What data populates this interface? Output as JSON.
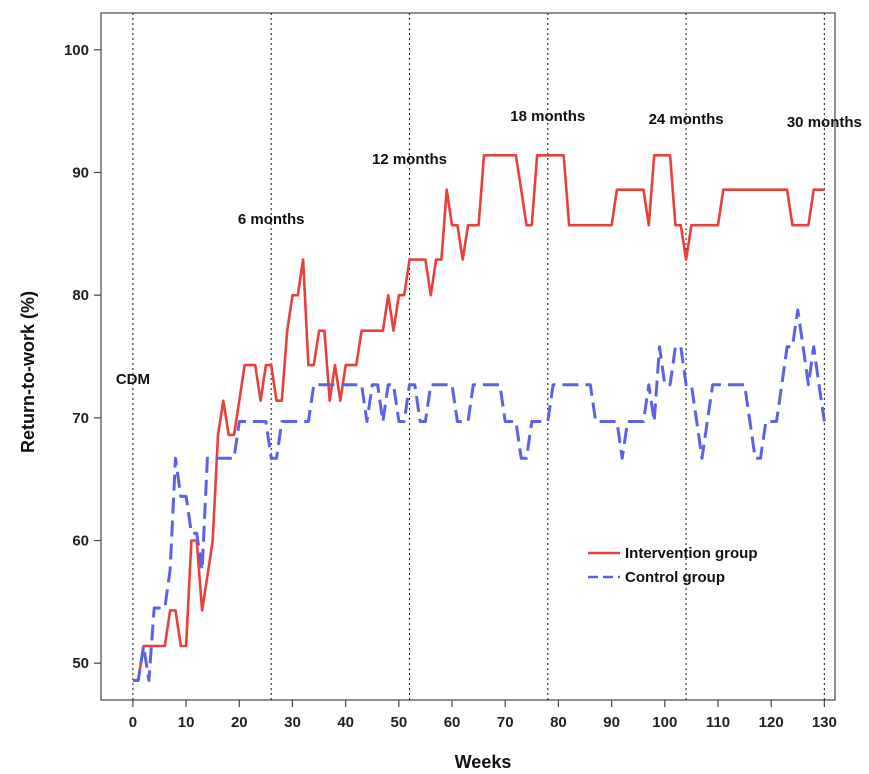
{
  "chart_data": {
    "type": "line",
    "title": "",
    "xlabel": "Weeks",
    "ylabel": "Return-to-work (%)",
    "xlim": [
      -6,
      132
    ],
    "ylim": [
      47,
      103
    ],
    "xticks": [
      0,
      10,
      20,
      30,
      40,
      50,
      60,
      70,
      80,
      90,
      100,
      110,
      120,
      130
    ],
    "yticks": [
      50,
      60,
      70,
      80,
      90,
      100
    ],
    "grid": false,
    "legend_position": "lower-right",
    "reference_lines": [
      {
        "x": 0,
        "label": "CDM"
      },
      {
        "x": 26,
        "label": "6 months"
      },
      {
        "x": 52,
        "label": "12 months"
      },
      {
        "x": 78,
        "label": "18 months"
      },
      {
        "x": 104,
        "label": "24 months"
      },
      {
        "x": 130,
        "label": "30 months"
      }
    ],
    "series": [
      {
        "name": "Intervention group",
        "color": "#e8403a",
        "style": "solid",
        "points": [
          [
            0,
            48.6
          ],
          [
            1,
            48.6
          ],
          [
            2,
            51.4
          ],
          [
            3,
            51.4
          ],
          [
            4,
            51.4
          ],
          [
            5,
            51.4
          ],
          [
            6,
            51.4
          ],
          [
            7,
            54.3
          ],
          [
            8,
            54.3
          ],
          [
            9,
            51.4
          ],
          [
            10,
            51.4
          ],
          [
            11,
            60.0
          ],
          [
            12,
            60.0
          ],
          [
            13,
            54.3
          ],
          [
            14,
            57.1
          ],
          [
            15,
            60.0
          ],
          [
            16,
            68.6
          ],
          [
            17,
            71.4
          ],
          [
            18,
            68.6
          ],
          [
            19,
            68.6
          ],
          [
            20,
            71.4
          ],
          [
            21,
            74.3
          ],
          [
            22,
            74.3
          ],
          [
            23,
            74.3
          ],
          [
            24,
            71.4
          ],
          [
            25,
            74.3
          ],
          [
            26,
            74.3
          ],
          [
            27,
            71.4
          ],
          [
            28,
            71.4
          ],
          [
            29,
            77.1
          ],
          [
            30,
            80.0
          ],
          [
            31,
            80.0
          ],
          [
            32,
            82.9
          ],
          [
            33,
            74.3
          ],
          [
            34,
            74.3
          ],
          [
            35,
            77.1
          ],
          [
            36,
            77.1
          ],
          [
            37,
            71.4
          ],
          [
            38,
            74.3
          ],
          [
            39,
            71.4
          ],
          [
            40,
            74.3
          ],
          [
            41,
            74.3
          ],
          [
            42,
            74.3
          ],
          [
            43,
            77.1
          ],
          [
            44,
            77.1
          ],
          [
            45,
            77.1
          ],
          [
            46,
            77.1
          ],
          [
            47,
            77.1
          ],
          [
            48,
            80.0
          ],
          [
            49,
            77.1
          ],
          [
            50,
            80.0
          ],
          [
            51,
            80.0
          ],
          [
            52,
            82.9
          ],
          [
            53,
            82.9
          ],
          [
            54,
            82.9
          ],
          [
            55,
            82.9
          ],
          [
            56,
            80.0
          ],
          [
            57,
            82.9
          ],
          [
            58,
            82.9
          ],
          [
            59,
            88.6
          ],
          [
            60,
            85.7
          ],
          [
            61,
            85.7
          ],
          [
            62,
            82.9
          ],
          [
            63,
            85.7
          ],
          [
            64,
            85.7
          ],
          [
            65,
            85.7
          ],
          [
            66,
            91.4
          ],
          [
            67,
            91.4
          ],
          [
            68,
            91.4
          ],
          [
            69,
            91.4
          ],
          [
            70,
            91.4
          ],
          [
            71,
            91.4
          ],
          [
            72,
            91.4
          ],
          [
            73,
            88.6
          ],
          [
            74,
            85.7
          ],
          [
            75,
            85.7
          ],
          [
            76,
            91.4
          ],
          [
            77,
            91.4
          ],
          [
            78,
            91.4
          ],
          [
            79,
            91.4
          ],
          [
            80,
            91.4
          ],
          [
            81,
            91.4
          ],
          [
            82,
            85.7
          ],
          [
            83,
            85.7
          ],
          [
            84,
            85.7
          ],
          [
            85,
            85.7
          ],
          [
            86,
            85.7
          ],
          [
            87,
            85.7
          ],
          [
            88,
            85.7
          ],
          [
            89,
            85.7
          ],
          [
            90,
            85.7
          ],
          [
            91,
            88.6
          ],
          [
            92,
            88.6
          ],
          [
            93,
            88.6
          ],
          [
            94,
            88.6
          ],
          [
            95,
            88.6
          ],
          [
            96,
            88.6
          ],
          [
            97,
            85.7
          ],
          [
            98,
            91.4
          ],
          [
            99,
            91.4
          ],
          [
            100,
            91.4
          ],
          [
            101,
            91.4
          ],
          [
            102,
            85.7
          ],
          [
            103,
            85.7
          ],
          [
            104,
            82.9
          ],
          [
            105,
            85.7
          ],
          [
            106,
            85.7
          ],
          [
            107,
            85.7
          ],
          [
            108,
            85.7
          ],
          [
            109,
            85.7
          ],
          [
            110,
            85.7
          ],
          [
            111,
            88.6
          ],
          [
            112,
            88.6
          ],
          [
            113,
            88.6
          ],
          [
            114,
            88.6
          ],
          [
            115,
            88.6
          ],
          [
            116,
            88.6
          ],
          [
            117,
            88.6
          ],
          [
            118,
            88.6
          ],
          [
            119,
            88.6
          ],
          [
            120,
            88.6
          ],
          [
            121,
            88.6
          ],
          [
            122,
            88.6
          ],
          [
            123,
            88.6
          ],
          [
            124,
            85.7
          ],
          [
            125,
            85.7
          ],
          [
            126,
            85.7
          ],
          [
            127,
            85.7
          ],
          [
            128,
            88.6
          ],
          [
            129,
            88.6
          ],
          [
            130,
            88.6
          ]
        ]
      },
      {
        "name": "Control group",
        "color": "#5a62e8",
        "style": "dashed",
        "points": [
          [
            0,
            48.6
          ],
          [
            1,
            48.6
          ],
          [
            2,
            51.4
          ],
          [
            3,
            48.6
          ],
          [
            4,
            54.5
          ],
          [
            5,
            54.5
          ],
          [
            6,
            54.5
          ],
          [
            7,
            57.6
          ],
          [
            8,
            66.7
          ],
          [
            9,
            63.6
          ],
          [
            10,
            63.6
          ],
          [
            11,
            60.6
          ],
          [
            12,
            60.6
          ],
          [
            13,
            57.6
          ],
          [
            14,
            66.7
          ],
          [
            15,
            66.7
          ],
          [
            16,
            66.7
          ],
          [
            17,
            66.7
          ],
          [
            18,
            66.7
          ],
          [
            19,
            66.7
          ],
          [
            20,
            69.7
          ],
          [
            21,
            69.7
          ],
          [
            22,
            69.7
          ],
          [
            23,
            69.7
          ],
          [
            24,
            69.7
          ],
          [
            25,
            69.7
          ],
          [
            26,
            66.7
          ],
          [
            27,
            66.7
          ],
          [
            28,
            69.7
          ],
          [
            29,
            69.7
          ],
          [
            30,
            69.7
          ],
          [
            31,
            69.7
          ],
          [
            32,
            69.7
          ],
          [
            33,
            69.7
          ],
          [
            34,
            72.7
          ],
          [
            35,
            72.7
          ],
          [
            36,
            72.7
          ],
          [
            37,
            72.7
          ],
          [
            38,
            72.7
          ],
          [
            39,
            72.7
          ],
          [
            40,
            72.7
          ],
          [
            41,
            72.7
          ],
          [
            42,
            72.7
          ],
          [
            43,
            72.7
          ],
          [
            44,
            69.7
          ],
          [
            45,
            72.7
          ],
          [
            46,
            72.7
          ],
          [
            47,
            69.7
          ],
          [
            48,
            72.7
          ],
          [
            49,
            72.7
          ],
          [
            50,
            69.7
          ],
          [
            51,
            69.7
          ],
          [
            52,
            72.7
          ],
          [
            53,
            72.7
          ],
          [
            54,
            69.7
          ],
          [
            55,
            69.7
          ],
          [
            56,
            72.7
          ],
          [
            57,
            72.7
          ],
          [
            58,
            72.7
          ],
          [
            59,
            72.7
          ],
          [
            60,
            72.7
          ],
          [
            61,
            69.7
          ],
          [
            62,
            69.7
          ],
          [
            63,
            69.7
          ],
          [
            64,
            72.7
          ],
          [
            65,
            72.7
          ],
          [
            66,
            72.7
          ],
          [
            67,
            72.7
          ],
          [
            68,
            72.7
          ],
          [
            69,
            72.7
          ],
          [
            70,
            69.7
          ],
          [
            71,
            69.7
          ],
          [
            72,
            69.7
          ],
          [
            73,
            66.7
          ],
          [
            74,
            66.7
          ],
          [
            75,
            69.7
          ],
          [
            76,
            69.7
          ],
          [
            77,
            69.7
          ],
          [
            78,
            69.7
          ],
          [
            79,
            72.7
          ],
          [
            80,
            72.7
          ],
          [
            81,
            72.7
          ],
          [
            82,
            72.7
          ],
          [
            83,
            72.7
          ],
          [
            84,
            72.7
          ],
          [
            85,
            72.7
          ],
          [
            86,
            72.7
          ],
          [
            87,
            69.7
          ],
          [
            88,
            69.7
          ],
          [
            89,
            69.7
          ],
          [
            90,
            69.7
          ],
          [
            91,
            69.7
          ],
          [
            92,
            66.7
          ],
          [
            93,
            69.7
          ],
          [
            94,
            69.7
          ],
          [
            95,
            69.7
          ],
          [
            96,
            69.7
          ],
          [
            97,
            72.7
          ],
          [
            98,
            69.7
          ],
          [
            99,
            75.8
          ],
          [
            100,
            72.7
          ],
          [
            101,
            72.7
          ],
          [
            102,
            75.8
          ],
          [
            103,
            75.8
          ],
          [
            104,
            72.7
          ],
          [
            105,
            72.7
          ],
          [
            106,
            69.7
          ],
          [
            107,
            66.7
          ],
          [
            108,
            69.7
          ],
          [
            109,
            72.7
          ],
          [
            110,
            72.7
          ],
          [
            111,
            72.7
          ],
          [
            112,
            72.7
          ],
          [
            113,
            72.7
          ],
          [
            114,
            72.7
          ],
          [
            115,
            72.7
          ],
          [
            116,
            69.7
          ],
          [
            117,
            66.7
          ],
          [
            118,
            66.7
          ],
          [
            119,
            69.7
          ],
          [
            120,
            69.7
          ],
          [
            121,
            69.7
          ],
          [
            122,
            72.7
          ],
          [
            123,
            75.8
          ],
          [
            124,
            75.8
          ],
          [
            125,
            78.8
          ],
          [
            126,
            75.8
          ],
          [
            127,
            72.7
          ],
          [
            128,
            75.8
          ],
          [
            129,
            72.7
          ],
          [
            130,
            69.7
          ]
        ]
      }
    ]
  }
}
